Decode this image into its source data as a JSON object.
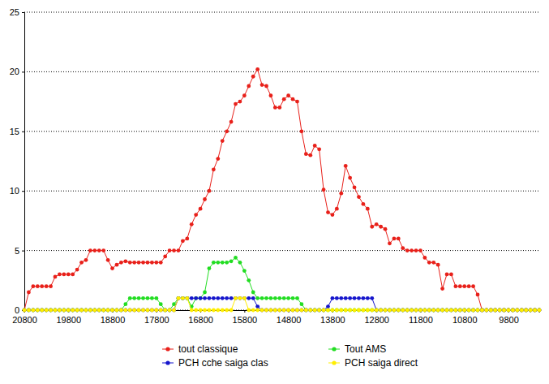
{
  "chart_data": {
    "type": "line",
    "x": [
      20800,
      20700,
      20600,
      20500,
      20400,
      20300,
      20200,
      20100,
      20000,
      19900,
      19800,
      19700,
      19600,
      19500,
      19400,
      19300,
      19200,
      19100,
      19000,
      18900,
      18800,
      18700,
      18600,
      18500,
      18400,
      18300,
      18200,
      18100,
      18000,
      17900,
      17800,
      17700,
      17600,
      17500,
      17400,
      17300,
      17200,
      17100,
      17000,
      16900,
      16800,
      16700,
      16600,
      16500,
      16400,
      16300,
      16200,
      16100,
      16000,
      15900,
      15800,
      15700,
      15600,
      15500,
      15400,
      15300,
      15200,
      15100,
      15000,
      14900,
      14800,
      14700,
      14600,
      14500,
      14400,
      14300,
      14200,
      14100,
      14000,
      13900,
      13800,
      13700,
      13600,
      13500,
      13400,
      13300,
      13200,
      13100,
      13000,
      12900,
      12800,
      12700,
      12600,
      12500,
      12400,
      12300,
      12200,
      12100,
      12000,
      11900,
      11800,
      11700,
      11600,
      11500,
      11400,
      11300,
      11200,
      11100,
      11000,
      10900,
      10800,
      10700,
      10600,
      10500,
      10400,
      10300,
      10200,
      10100,
      10000,
      9900,
      9800,
      9700,
      9600,
      9500,
      9400,
      9300,
      9200,
      9100
    ],
    "series": [
      {
        "name": "tout classique",
        "color": "#e8201a",
        "marker": "circle",
        "values": [
          0,
          1.5,
          2,
          2,
          2,
          2,
          2,
          2.8,
          3,
          3,
          3,
          3,
          3.4,
          4,
          4.2,
          5,
          5,
          5,
          5,
          4.2,
          3.5,
          3.8,
          4,
          4.1,
          4,
          4,
          4,
          4,
          4,
          4,
          4,
          4,
          4.5,
          5,
          5,
          5,
          5.8,
          6,
          7.2,
          8,
          8.5,
          9.3,
          10,
          11.8,
          12.7,
          14.2,
          15,
          15.8,
          17.3,
          17.5,
          18,
          18.8,
          19.6,
          20.2,
          18.9,
          18.8,
          18,
          17,
          17,
          17.7,
          18,
          17.7,
          17.5,
          15,
          13.1,
          13,
          13.8,
          13.5,
          10.1,
          8.2,
          8,
          8.5,
          9.8,
          12.1,
          11.1,
          10.3,
          9.5,
          8.9,
          8.5,
          7,
          7.2,
          7,
          6.8,
          5.6,
          6,
          6,
          5.2,
          5,
          5,
          5,
          5,
          4.4,
          4,
          4,
          3.8,
          1.8,
          3,
          3,
          2,
          2,
          2,
          2,
          2,
          1.3,
          0,
          0,
          0,
          0,
          0,
          0,
          0,
          0,
          0,
          0,
          0,
          0,
          0,
          0
        ]
      },
      {
        "name": "Tout AMS",
        "color": "#22dd22",
        "marker": "circle",
        "values": [
          0,
          0,
          0,
          0,
          0,
          0,
          0,
          0,
          0,
          0,
          0,
          0,
          0,
          0,
          0,
          0,
          0,
          0,
          0,
          0,
          0,
          0,
          0,
          0.5,
          1,
          1,
          1,
          1,
          1,
          1,
          1,
          0.5,
          0,
          0,
          0.5,
          1,
          1,
          1,
          0.3,
          1,
          1,
          1.5,
          3.5,
          4,
          4,
          4,
          4,
          4.1,
          4.4,
          4,
          3.3,
          2.5,
          1.5,
          1,
          1,
          1,
          1,
          1,
          1,
          1,
          1,
          1,
          1,
          0.5,
          0,
          0,
          0,
          0,
          0,
          0,
          0,
          0,
          0,
          0,
          0,
          0,
          0,
          0,
          0,
          0,
          0,
          0,
          0,
          0,
          0,
          0,
          0,
          0,
          0,
          0,
          0,
          0,
          0,
          0,
          0,
          0,
          0,
          0,
          0,
          0,
          0,
          0,
          0,
          0,
          0,
          0,
          0,
          0,
          0,
          0,
          0,
          0,
          0,
          0,
          0,
          0,
          0,
          0
        ]
      },
      {
        "name": "PCH cche saiga clas",
        "color": "#1515cc",
        "marker": "circle",
        "values": [
          0,
          0,
          0,
          0,
          0,
          0,
          0,
          0,
          0,
          0,
          0,
          0,
          0,
          0,
          0,
          0,
          0,
          0,
          0,
          0,
          0,
          0,
          0,
          0,
          0,
          0,
          0,
          0,
          0,
          0,
          0,
          0,
          0,
          0,
          0,
          1,
          1,
          1,
          1,
          1,
          1,
          1,
          1,
          1,
          1,
          1,
          1,
          1,
          1,
          1,
          1,
          1,
          1,
          0.3,
          0,
          0,
          0,
          0,
          0,
          0,
          0,
          0,
          0,
          0,
          0,
          0,
          0,
          0,
          0,
          0.3,
          1,
          1,
          1,
          1,
          1,
          1,
          1,
          1,
          1,
          1,
          0,
          0,
          0,
          0,
          0,
          0,
          0,
          0,
          0,
          0,
          0,
          0,
          0,
          0,
          0,
          0,
          0,
          0,
          0,
          0,
          0,
          0,
          0,
          0,
          0,
          0,
          0,
          0,
          0,
          0,
          0,
          0,
          0,
          0,
          0,
          0,
          0,
          0
        ]
      },
      {
        "name": "PCH saiga direct",
        "color": "#ffee00",
        "marker": "circle",
        "values": [
          0,
          0,
          0,
          0,
          0,
          0,
          0,
          0,
          0,
          0,
          0,
          0,
          0,
          0,
          0,
          0,
          0,
          0,
          0,
          0,
          0,
          0,
          0,
          0,
          0,
          0,
          0,
          0,
          0,
          0,
          0,
          0,
          0,
          0,
          0,
          1,
          1,
          1,
          0,
          0,
          0,
          0,
          0,
          0,
          0,
          0,
          0,
          0,
          1,
          1,
          1,
          0,
          0,
          0,
          0,
          0,
          0,
          0,
          0,
          0,
          0,
          0,
          0,
          0,
          0,
          0,
          0,
          0,
          0,
          0,
          0,
          0,
          0,
          0,
          0,
          0,
          0,
          0,
          0,
          0,
          0,
          0,
          0,
          0,
          0,
          0,
          0,
          0,
          0,
          0,
          0,
          0,
          0,
          0,
          0,
          0,
          0,
          0,
          0,
          0,
          0,
          0,
          0,
          0,
          0,
          0,
          0,
          0,
          0,
          0,
          0,
          0,
          0,
          0,
          0,
          0,
          0,
          0
        ]
      }
    ],
    "xlim": [
      20800,
      9100
    ],
    "xticks": [
      20800,
      19800,
      18800,
      17800,
      16800,
      15800,
      14800,
      13800,
      12800,
      11800,
      10800,
      9800
    ],
    "ylim": [
      0,
      25
    ],
    "yticks": [
      0,
      5,
      10,
      15,
      20,
      25
    ],
    "grid": true,
    "legend": "bottom"
  }
}
